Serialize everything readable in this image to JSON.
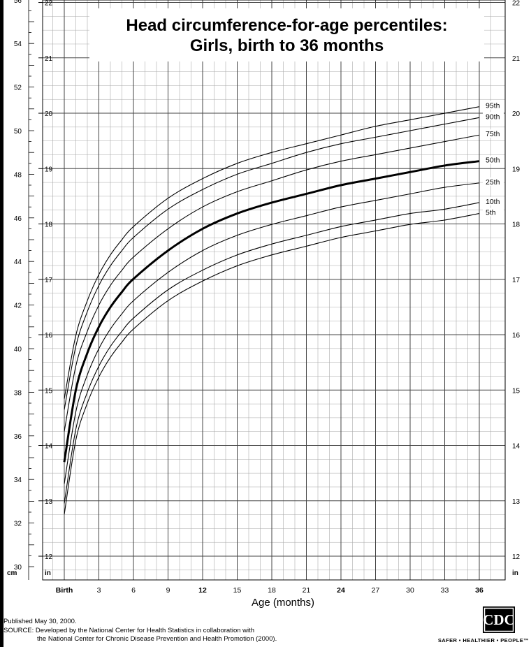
{
  "chart_data": {
    "type": "line",
    "title": "Head circumference-for-age percentiles:",
    "subtitle": "Girls, birth to 36 months",
    "xlabel": "Age (months)",
    "x_tick_labels": [
      {
        "x": 0,
        "label": "Birth",
        "bold": true
      },
      {
        "x": 3,
        "label": "3",
        "bold": false
      },
      {
        "x": 6,
        "label": "6",
        "bold": false
      },
      {
        "x": 9,
        "label": "9",
        "bold": false
      },
      {
        "x": 12,
        "label": "12",
        "bold": true
      },
      {
        "x": 15,
        "label": "15",
        "bold": false
      },
      {
        "x": 18,
        "label": "18",
        "bold": false
      },
      {
        "x": 21,
        "label": "21",
        "bold": false
      },
      {
        "x": 24,
        "label": "24",
        "bold": true
      },
      {
        "x": 27,
        "label": "27",
        "bold": false
      },
      {
        "x": 30,
        "label": "30",
        "bold": false
      },
      {
        "x": 33,
        "label": "33",
        "bold": false
      },
      {
        "x": 36,
        "label": "36",
        "bold": true
      }
    ],
    "xlim": [
      0,
      36
    ],
    "ylim_cm": [
      30,
      56
    ],
    "y_cm_tick_labels": [
      "30",
      "32",
      "34",
      "36",
      "38",
      "40",
      "42",
      "44",
      "46",
      "48",
      "50",
      "52",
      "54",
      "56"
    ],
    "y_in_tick_labels": [
      "12",
      "13",
      "14",
      "15",
      "16",
      "17",
      "18",
      "19",
      "20",
      "21",
      "22"
    ],
    "y_unit_left": "cm",
    "y_unit_right_inner": "in",
    "y_unit_right": "in",
    "grid": true,
    "x": [
      0,
      1,
      2,
      3,
      4,
      5,
      6,
      9,
      12,
      15,
      18,
      21,
      24,
      27,
      30,
      33,
      36
    ],
    "series": [
      {
        "name": "95th",
        "bold": false,
        "values": [
          37.7,
          40.6,
          42.2,
          43.4,
          44.3,
          45.0,
          45.6,
          46.9,
          47.8,
          48.5,
          49.0,
          49.4,
          49.8,
          50.2,
          50.5,
          50.8,
          51.1
        ]
      },
      {
        "name": "90th",
        "bold": false,
        "values": [
          37.2,
          40.1,
          41.7,
          42.9,
          43.8,
          44.5,
          45.1,
          46.4,
          47.3,
          48.0,
          48.5,
          49.0,
          49.4,
          49.7,
          50.0,
          50.3,
          50.6
        ]
      },
      {
        "name": "75th",
        "bold": false,
        "values": [
          36.2,
          39.2,
          40.8,
          42.0,
          42.9,
          43.6,
          44.2,
          45.5,
          46.5,
          47.2,
          47.7,
          48.2,
          48.6,
          48.9,
          49.2,
          49.5,
          49.8
        ]
      },
      {
        "name": "50th",
        "bold": true,
        "values": [
          34.8,
          38.1,
          39.8,
          41.0,
          41.9,
          42.6,
          43.2,
          44.5,
          45.5,
          46.2,
          46.7,
          47.1,
          47.5,
          47.8,
          48.1,
          48.4,
          48.6
        ]
      },
      {
        "name": "25th",
        "bold": false,
        "values": [
          33.8,
          37.1,
          38.8,
          40.0,
          40.9,
          41.6,
          42.2,
          43.5,
          44.5,
          45.2,
          45.7,
          46.1,
          46.5,
          46.8,
          47.1,
          47.4,
          47.6
        ]
      },
      {
        "name": "10th",
        "bold": false,
        "values": [
          32.9,
          36.3,
          38.0,
          39.2,
          40.1,
          40.8,
          41.4,
          42.7,
          43.6,
          44.3,
          44.8,
          45.2,
          45.6,
          45.9,
          46.2,
          46.4,
          46.7
        ]
      },
      {
        "name": "5th",
        "bold": false,
        "values": [
          32.4,
          35.8,
          37.5,
          38.7,
          39.6,
          40.3,
          40.9,
          42.2,
          43.1,
          43.8,
          44.3,
          44.7,
          45.1,
          45.4,
          45.7,
          45.9,
          46.2
        ]
      }
    ]
  },
  "footer": {
    "published": "Published May 30, 2000.",
    "source_line1": "SOURCE: Developed by the National Center for Health Statistics in collaboration with",
    "source_line2": "the National Center for Chronic Disease Prevention and Health Promotion (2000).",
    "logo_text": "CDC",
    "tagline": "SAFER • HEALTHIER • PEOPLE™"
  }
}
